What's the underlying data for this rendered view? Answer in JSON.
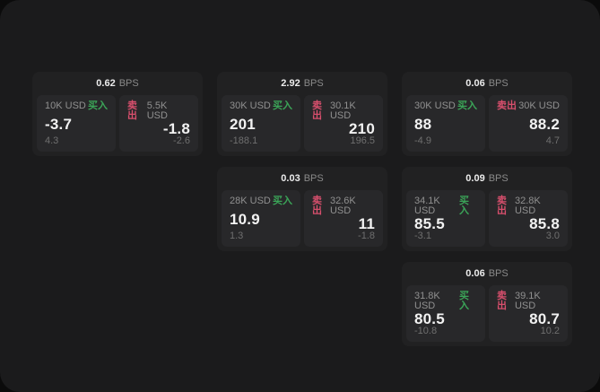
{
  "labels": {
    "bps": "BPS",
    "buy": "买入",
    "sell": "卖出"
  },
  "colors": {
    "outer_bg": "#0b0b0b",
    "window_bg": "#1b1b1c",
    "card_bg": "#212122",
    "panel_bg": "#28282a",
    "buy_green": "#3ba558",
    "sell_pink": "#d84f6d"
  },
  "cards": [
    {
      "row": 1,
      "col": 1,
      "bps": "0.62",
      "buy": {
        "amount": "10K USD",
        "price": "-3.7",
        "delta": "4.3"
      },
      "sell": {
        "amount": "5.5K USD",
        "price": "-1.8",
        "delta": "-2.6"
      }
    },
    {
      "row": 1,
      "col": 2,
      "bps": "2.92",
      "buy": {
        "amount": "30K USD",
        "price": "201",
        "delta": "-188.1"
      },
      "sell": {
        "amount": "30.1K USD",
        "price": "210",
        "delta": "196.5"
      }
    },
    {
      "row": 1,
      "col": 3,
      "bps": "0.06",
      "buy": {
        "amount": "30K USD",
        "price": "88",
        "delta": "-4.9"
      },
      "sell": {
        "amount": "30K USD",
        "price": "88.2",
        "delta": "4.7"
      }
    },
    {
      "row": 2,
      "col": 2,
      "bps": "0.03",
      "buy": {
        "amount": "28K USD",
        "price": "10.9",
        "delta": "1.3"
      },
      "sell": {
        "amount": "32.6K USD",
        "price": "11",
        "delta": "-1.8"
      }
    },
    {
      "row": 2,
      "col": 3,
      "bps": "0.09",
      "buy": {
        "amount": "34.1K USD",
        "price": "85.5",
        "delta": "-3.1"
      },
      "sell": {
        "amount": "32.8K USD",
        "price": "85.8",
        "delta": "3.0"
      }
    },
    {
      "row": 3,
      "col": 3,
      "bps": "0.06",
      "buy": {
        "amount": "31.8K USD",
        "price": "80.5",
        "delta": "-10.8"
      },
      "sell": {
        "amount": "39.1K USD",
        "price": "80.7",
        "delta": "10.2"
      }
    }
  ]
}
